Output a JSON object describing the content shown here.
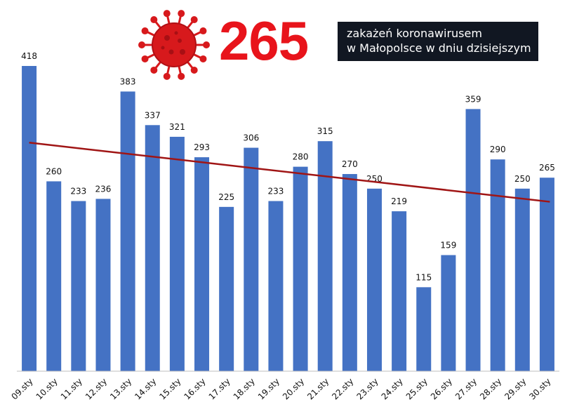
{
  "header": {
    "headline_number": "265",
    "info_line1": "zakażeń koronawirusem",
    "info_line2": "w Małopolsce w dniu dzisiejszym",
    "headline_color": "#e8141b",
    "info_bg": "#111722",
    "virus_icon": "coronavirus-icon"
  },
  "chart_data": {
    "type": "bar",
    "categories": [
      "09.sty",
      "10.sty",
      "11.sty",
      "12.sty",
      "13.sty",
      "14.sty",
      "15.sty",
      "16.sty",
      "17.sty",
      "18.sty",
      "19.sty",
      "20.sty",
      "21.sty",
      "22.sty",
      "23.sty",
      "24.sty",
      "25.sty",
      "26.sty",
      "27.sty",
      "28.sty",
      "29.sty",
      "30.sty"
    ],
    "values": [
      418,
      260,
      233,
      236,
      383,
      337,
      321,
      293,
      225,
      306,
      233,
      280,
      315,
      270,
      250,
      219,
      115,
      159,
      359,
      290,
      250,
      265
    ],
    "trendline": {
      "start": 313,
      "end": 232,
      "color": "#a01515"
    },
    "bar_color": "#4472c4",
    "ylim": [
      0,
      418
    ],
    "grid": false,
    "data_labels": true,
    "title": "",
    "xlabel": "",
    "ylabel": ""
  }
}
